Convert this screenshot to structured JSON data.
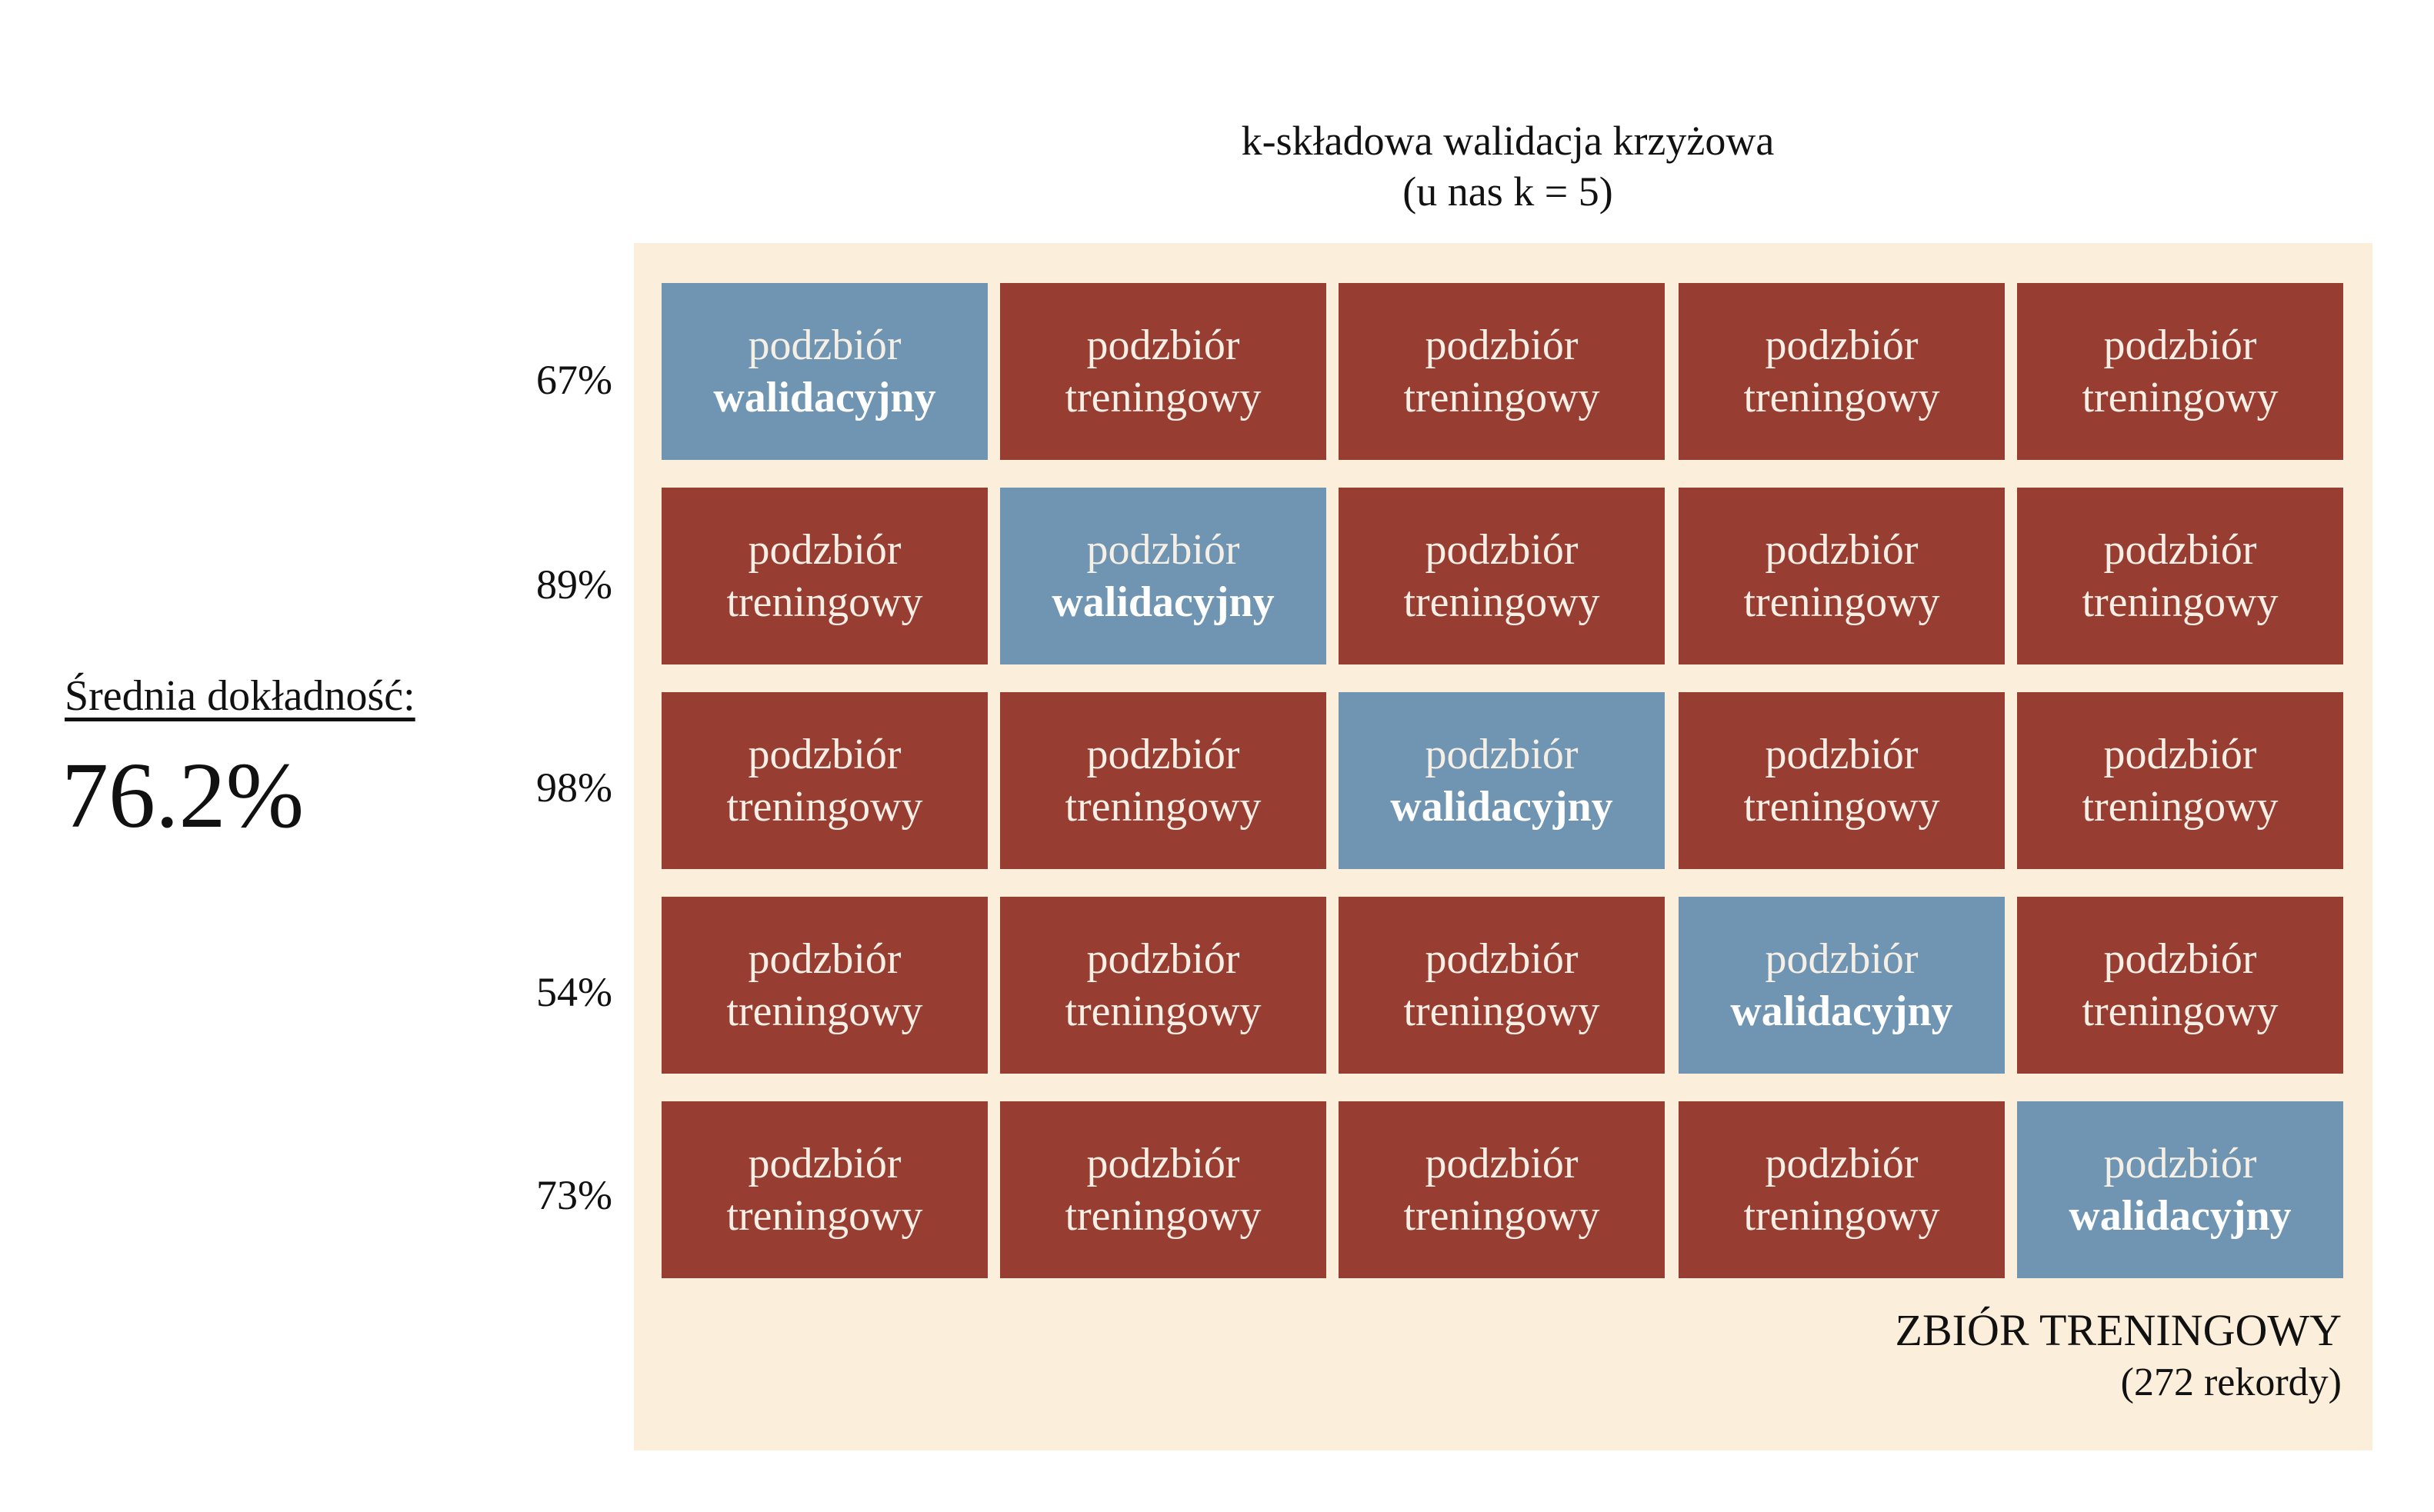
{
  "title": {
    "line1": "k-składowa walidacja krzyżowa",
    "line2": "(u nas k = 5)"
  },
  "average": {
    "label": "Średnia dokładność:",
    "value": "76.2%"
  },
  "dataset": {
    "name": "ZBIÓR TRENINGOWY",
    "count": "(272 rekordy)"
  },
  "labels": {
    "subset": "podzbiór",
    "train": "treningowy",
    "valid": "walidacyjny"
  },
  "colors": {
    "train": "#973d32",
    "valid": "#6f95b2",
    "panel": "#fbefdb"
  },
  "folds": [
    {
      "accuracy": "67%",
      "validation_index": 0
    },
    {
      "accuracy": "89%",
      "validation_index": 1
    },
    {
      "accuracy": "98%",
      "validation_index": 2
    },
    {
      "accuracy": "54%",
      "validation_index": 3
    },
    {
      "accuracy": "73%",
      "validation_index": 4
    }
  ]
}
